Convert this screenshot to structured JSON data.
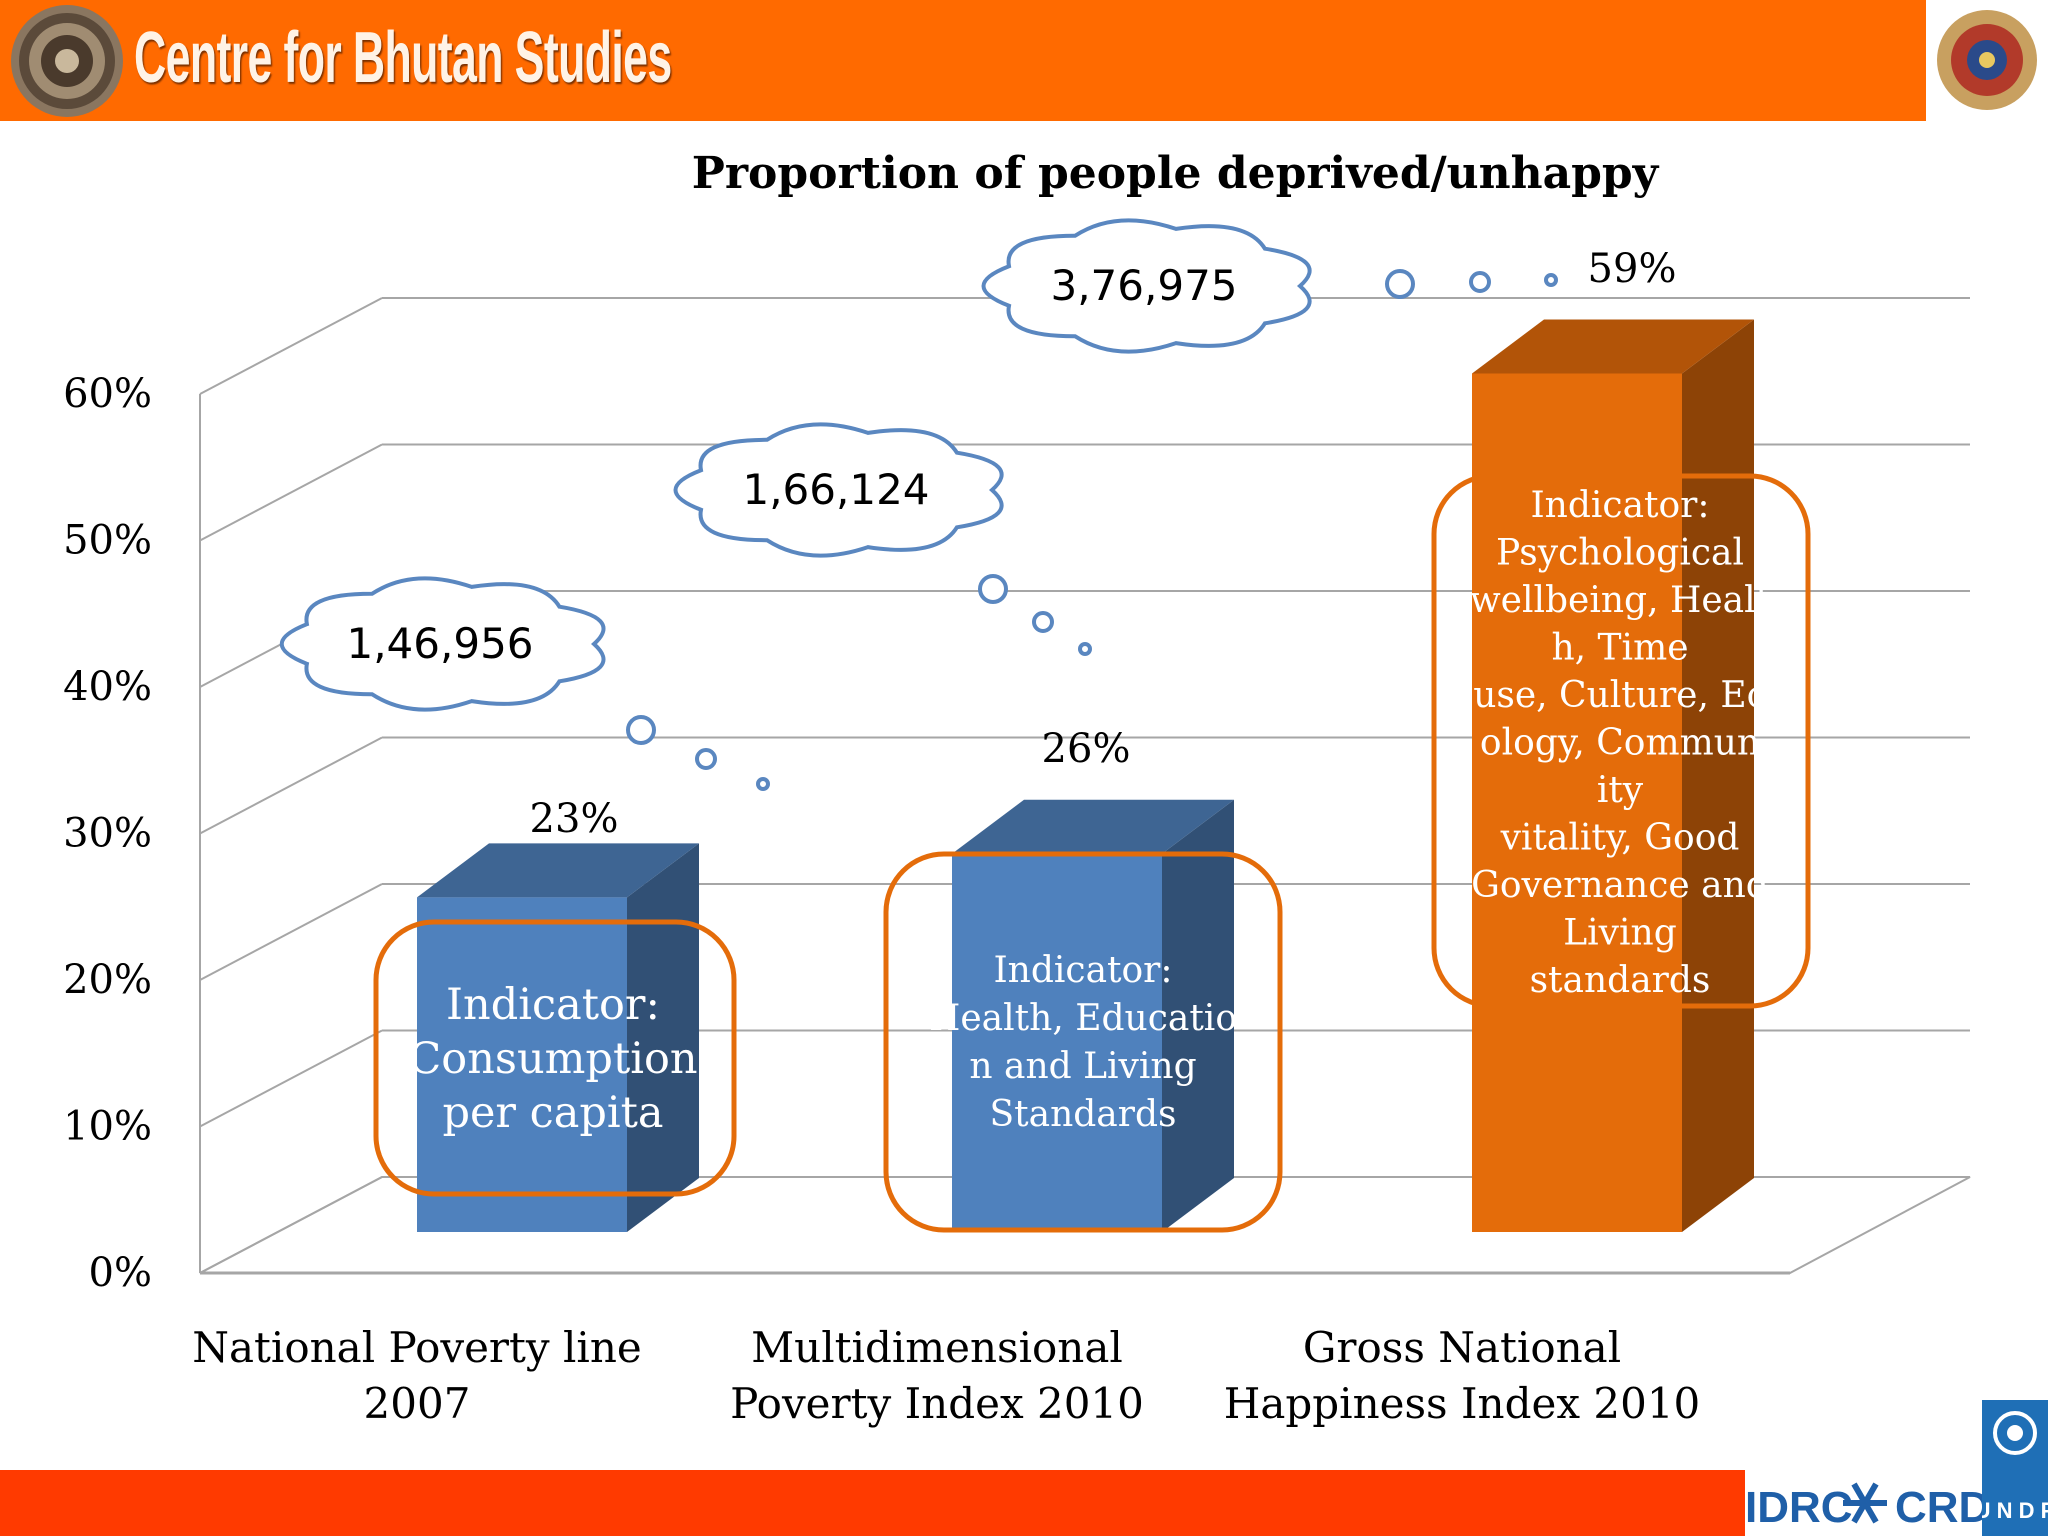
{
  "header": {
    "org_name": "Centre for Bhutan Studies",
    "color": "#ff6a00"
  },
  "footer": {
    "color": "#ff3a00",
    "logo_idrc": "IDRC",
    "logo_crdi": "CRDI",
    "logo_undp": "U N D P"
  },
  "chart_data": {
    "type": "bar",
    "title": "Proportion of people deprived/unhappy",
    "categories": [
      [
        "National Poverty line",
        "2007"
      ],
      [
        "Multidimensional",
        "Poverty Index 2010"
      ],
      [
        "Gross National",
        "Happiness Index 2010"
      ]
    ],
    "values": [
      23,
      26,
      59
    ],
    "data_labels": [
      "23%",
      "26%",
      "59%"
    ],
    "colors": [
      "#4f81bd",
      "#4f81bd",
      "#e46c0a"
    ],
    "ylim": [
      0,
      60
    ],
    "yticks": [
      "0%",
      "10%",
      "20%",
      "30%",
      "40%",
      "50%",
      "60%"
    ],
    "grid": true,
    "three_d": true,
    "annotations": {
      "counts": [
        "1,46,956",
        "1,66,124",
        "3,76,975"
      ],
      "indicators": [
        [
          "Indicator:",
          "Consumption",
          "per capita"
        ],
        [
          "Indicator:",
          "Health, Educatio",
          "n and Living",
          "Standards"
        ],
        [
          "Indicator:",
          "Psychological",
          "wellbeing, Healt",
          "h, Time",
          "use, Culture, Ec",
          "ology, Commun",
          "ity",
          "vitality, Good",
          "Governance and",
          "Living",
          "standards"
        ]
      ]
    }
  }
}
